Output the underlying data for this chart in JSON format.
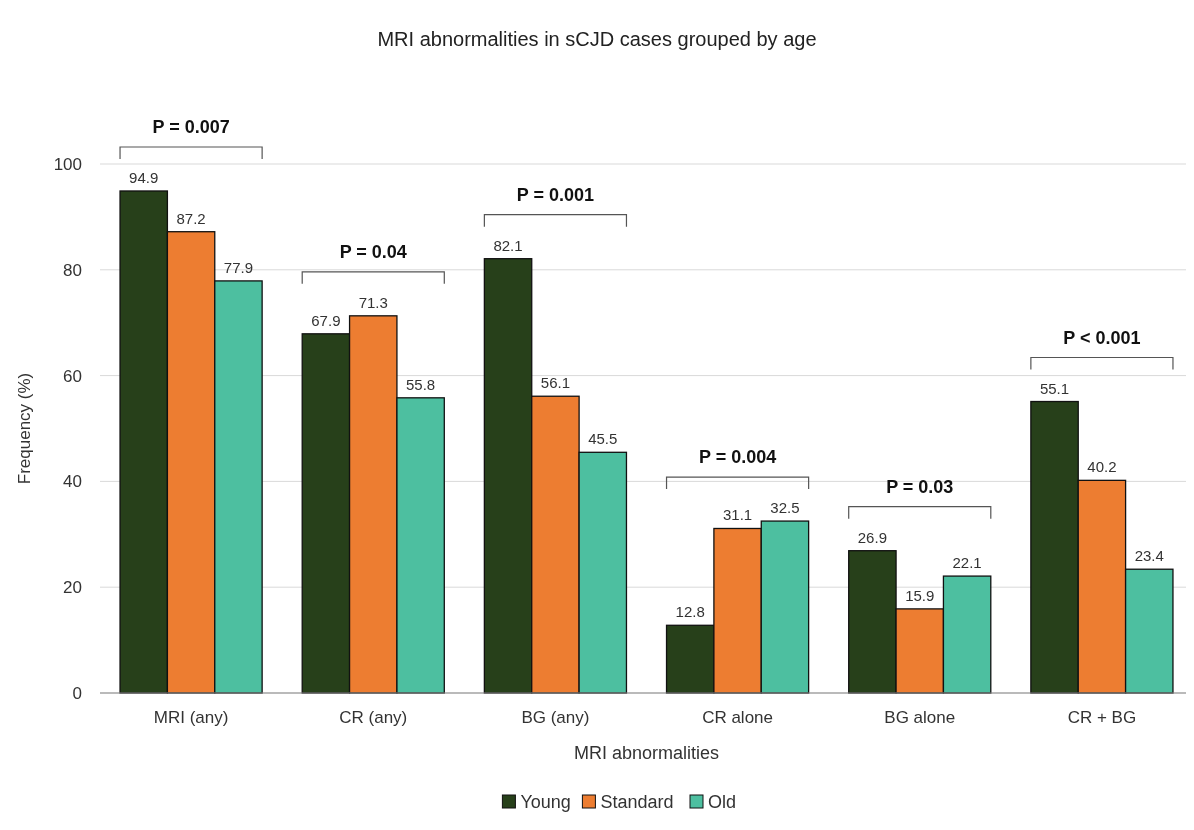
{
  "chart_data": {
    "type": "bar",
    "title": "MRI abnormalities in sCJD cases grouped by age",
    "xlabel": "MRI abnormalities",
    "ylabel": "Frequency (%)",
    "categories": [
      "MRI (any)",
      "CR (any)",
      "BG (any)",
      "CR alone",
      "BG alone",
      "CR + BG"
    ],
    "series": [
      {
        "name": "Young",
        "color": "#27401a",
        "values": [
          94.9,
          67.9,
          82.1,
          12.8,
          26.9,
          55.1
        ]
      },
      {
        "name": "Standard",
        "color": "#ed7d31",
        "values": [
          87.2,
          71.3,
          56.1,
          31.1,
          15.9,
          40.2
        ]
      },
      {
        "name": "Old",
        "color": "#4dbfa0",
        "values": [
          77.9,
          55.8,
          45.5,
          32.5,
          22.1,
          23.4
        ]
      }
    ],
    "ylim": [
      0,
      100
    ],
    "yticks": [
      0,
      20,
      40,
      60,
      80,
      100
    ],
    "grid": "y",
    "legend": "bottom",
    "data_labels": true,
    "annotations": [
      "P = 0.007",
      "P = 0.04",
      "P = 0.001",
      "P = 0.004",
      "P = 0.03",
      "P < 0.001"
    ]
  }
}
